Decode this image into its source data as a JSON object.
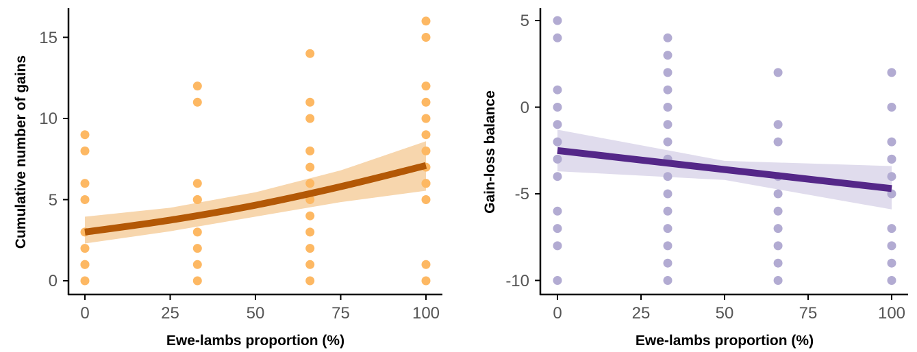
{
  "chart_data": [
    {
      "type": "scatter",
      "title": "",
      "xlabel": "Ewe-lambs proportion (%)",
      "ylabel": "Cumulative number of gains",
      "xlim": [
        0,
        100
      ],
      "ylim": [
        0,
        16
      ],
      "xticks": [
        "0",
        "25",
        "50",
        "75",
        "100"
      ],
      "yticks": [
        "0",
        "5",
        "10",
        "15"
      ],
      "grid": false,
      "colors": {
        "points": "#FDB863",
        "line": "#B35806",
        "band": "#F6CF9F"
      },
      "points": {
        "x": [
          0,
          0,
          0,
          0,
          0,
          0,
          0,
          0,
          0,
          33,
          33,
          33,
          33,
          33,
          33,
          33,
          33,
          33,
          66,
          66,
          66,
          66,
          66,
          66,
          66,
          66,
          66,
          66,
          66,
          66,
          100,
          100,
          100,
          100,
          100,
          100,
          100,
          100,
          100,
          100,
          100,
          100,
          100
        ],
        "y": [
          0,
          1,
          2,
          3,
          5,
          6,
          8,
          9,
          1,
          0,
          1,
          2,
          3,
          5,
          6,
          11,
          12,
          5,
          0,
          1,
          2,
          3,
          4,
          5,
          6,
          7,
          8,
          10,
          11,
          14,
          0,
          1,
          5,
          6,
          7,
          8,
          9,
          10,
          11,
          12,
          15,
          16,
          6
        ]
      },
      "fit": {
        "x": [
          0,
          25,
          50,
          75,
          100
        ],
        "y": [
          3.0,
          3.74,
          4.66,
          5.8,
          7.1
        ],
        "lower": [
          2.3,
          3.05,
          3.95,
          4.85,
          5.55
        ],
        "upper": [
          3.95,
          4.5,
          5.45,
          6.8,
          8.6
        ]
      }
    },
    {
      "type": "scatter",
      "title": "",
      "xlabel": "Ewe-lambs proportion (%)",
      "ylabel": "Gain-loss balance",
      "xlim": [
        0,
        100
      ],
      "ylim": [
        -10,
        5
      ],
      "xticks": [
        "0",
        "25",
        "50",
        "75",
        "100"
      ],
      "yticks": [
        "5",
        "0",
        "-5",
        "-10"
      ],
      "grid": false,
      "colors": {
        "points": "#B2ABD2",
        "line": "#542788",
        "band": "#DAD6EA"
      },
      "points": {
        "x": [
          0,
          0,
          0,
          0,
          0,
          0,
          0,
          0,
          0,
          0,
          0,
          0,
          33,
          33,
          33,
          33,
          33,
          33,
          33,
          33,
          33,
          33,
          33,
          33,
          33,
          33,
          33,
          33,
          66,
          66,
          66,
          66,
          66,
          66,
          66,
          66,
          66,
          66,
          100,
          100,
          100,
          100,
          100,
          100,
          100,
          100,
          100,
          100,
          100
        ],
        "y": [
          5,
          4,
          1,
          0,
          -1,
          -2,
          -3,
          -4,
          -6,
          -7,
          -8,
          -10,
          4,
          3,
          2,
          1,
          0,
          -1,
          -2,
          -3,
          -4,
          -5,
          -6,
          -7,
          -8,
          -9,
          -10,
          -3,
          2,
          -1,
          -2,
          -4,
          -5,
          -6,
          -7,
          -8,
          -9,
          -10,
          2,
          0,
          -2,
          -3,
          -4,
          -5,
          -7,
          -8,
          -9,
          -10,
          -3
        ]
      },
      "fit": {
        "x": [
          0,
          100
        ],
        "y": [
          -2.5,
          -4.7
        ],
        "lower": [
          -3.7,
          -5.9
        ],
        "upper": [
          -1.3,
          -3.4
        ],
        "mid_x": 50,
        "mid_lower": [
          -4.2
        ],
        "mid_upper": [
          -3.1
        ]
      }
    }
  ]
}
